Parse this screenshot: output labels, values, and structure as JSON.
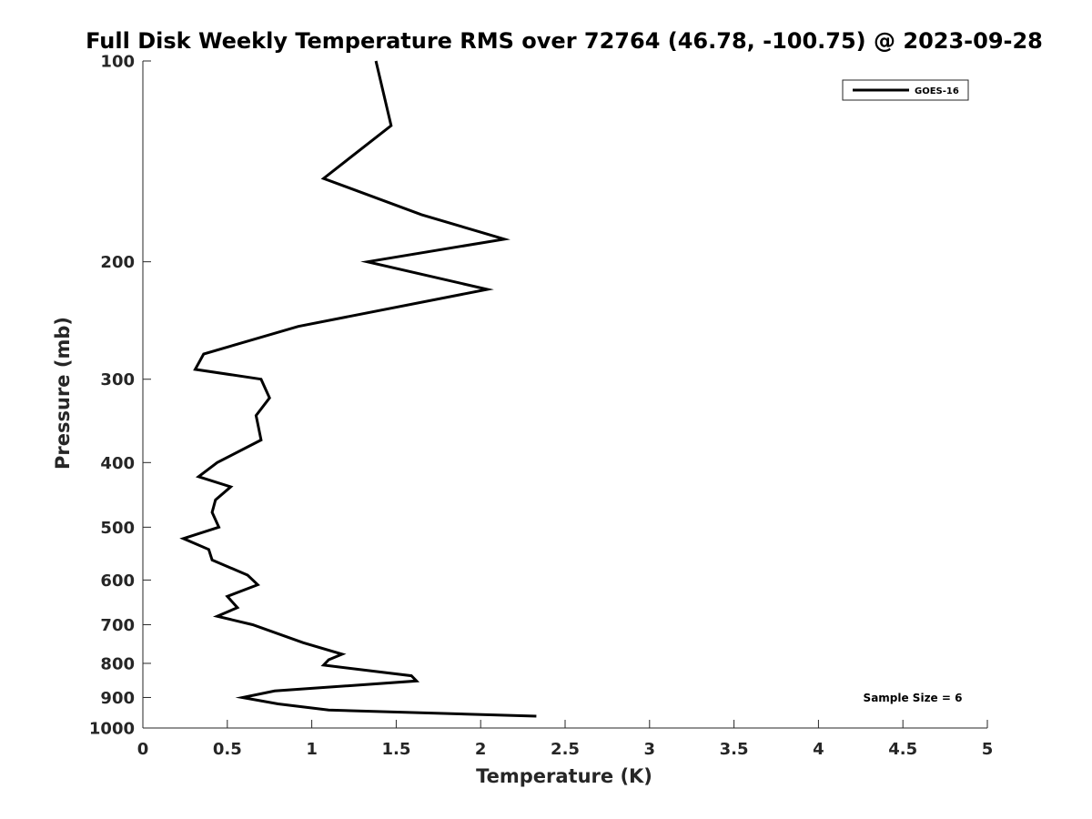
{
  "chart_data": {
    "type": "line",
    "title": "Full Disk Weekly Temperature RMS over 72764 (46.78, -100.75) @ 2023-09-28",
    "xlabel": "Temperature (K)",
    "ylabel": "Pressure (mb)",
    "xlim": [
      0,
      5
    ],
    "ylim": [
      100,
      1000
    ],
    "y_scale": "log",
    "y_reversed": true,
    "x_ticks": [
      0,
      0.5,
      1,
      1.5,
      2,
      2.5,
      3,
      3.5,
      4,
      4.5,
      5
    ],
    "x_tick_labels": [
      "0",
      "0.5",
      "1",
      "1.5",
      "2",
      "2.5",
      "3",
      "3.5",
      "4",
      "4.5",
      "5"
    ],
    "y_ticks": [
      100,
      200,
      300,
      400,
      500,
      600,
      700,
      800,
      900,
      1000
    ],
    "y_tick_labels": [
      "100",
      "200",
      "300",
      "400",
      "500",
      "600",
      "700",
      "800",
      "900",
      "1000"
    ],
    "grid": false,
    "legend_position": "top-right",
    "annotation": "Sample Size = 6",
    "series": [
      {
        "name": "GOES-16",
        "color": "#000000",
        "points": [
          [
            1.38,
            100
          ],
          [
            1.47,
            125
          ],
          [
            1.07,
            150
          ],
          [
            1.65,
            170
          ],
          [
            2.14,
            185
          ],
          [
            1.33,
            200
          ],
          [
            2.04,
            220
          ],
          [
            0.92,
            250
          ],
          [
            0.36,
            275
          ],
          [
            0.31,
            290
          ],
          [
            0.7,
            300
          ],
          [
            0.75,
            320
          ],
          [
            0.67,
            340
          ],
          [
            0.7,
            370
          ],
          [
            0.44,
            400
          ],
          [
            0.33,
            420
          ],
          [
            0.52,
            435
          ],
          [
            0.43,
            455
          ],
          [
            0.41,
            475
          ],
          [
            0.45,
            500
          ],
          [
            0.24,
            520
          ],
          [
            0.39,
            540
          ],
          [
            0.41,
            560
          ],
          [
            0.62,
            590
          ],
          [
            0.68,
            610
          ],
          [
            0.5,
            635
          ],
          [
            0.56,
            660
          ],
          [
            0.44,
            680
          ],
          [
            0.65,
            700
          ],
          [
            0.95,
            745
          ],
          [
            1.18,
            775
          ],
          [
            1.1,
            790
          ],
          [
            1.07,
            805
          ],
          [
            1.59,
            835
          ],
          [
            1.62,
            850
          ],
          [
            0.78,
            880
          ],
          [
            0.59,
            900
          ],
          [
            0.8,
            920
          ],
          [
            1.1,
            940
          ],
          [
            2.33,
            960
          ]
        ]
      }
    ]
  }
}
